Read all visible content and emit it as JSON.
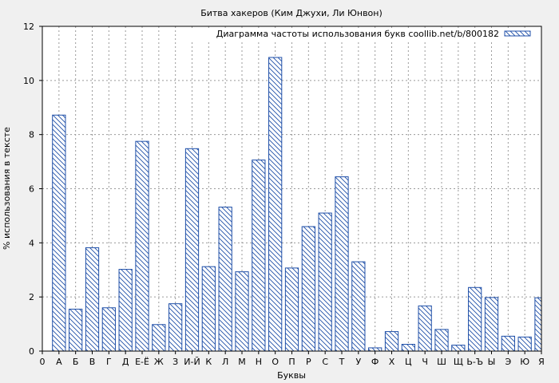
{
  "chart_data": {
    "type": "bar",
    "title": "Битва хакеров (Ким Джухи, Ли Юнвон)",
    "xlabel": "Буквы",
    "ylabel": "% использования в тексте",
    "ylim": [
      0,
      12
    ],
    "yticks": [
      0,
      2,
      4,
      6,
      8,
      10,
      12
    ],
    "grid": true,
    "legend_position": "top-right",
    "legend_label": "Диаграмма частоты использования букв coollib.net/b/800182",
    "bar_color": "#1f4fa8",
    "categories": [
      "0",
      "А",
      "Б",
      "В",
      "Г",
      "Д",
      "Е-Ё",
      "Ж",
      "З",
      "И-Й",
      "К",
      "Л",
      "М",
      "Н",
      "О",
      "П",
      "Р",
      "С",
      "Т",
      "У",
      "Ф",
      "Х",
      "Ц",
      "Ч",
      "Ш",
      "Щ",
      "Ь-Ъ",
      "Ы",
      "Э",
      "Ю",
      "Я"
    ],
    "values": [
      0,
      8.72,
      1.55,
      3.82,
      1.6,
      3.02,
      7.75,
      0.98,
      1.75,
      7.48,
      3.12,
      5.32,
      2.93,
      7.06,
      10.85,
      3.07,
      4.6,
      5.1,
      6.44,
      3.3,
      0.12,
      0.72,
      0.25,
      1.67,
      0.8,
      0.22,
      2.35,
      1.98,
      0.55,
      0.52,
      1.97
    ]
  }
}
